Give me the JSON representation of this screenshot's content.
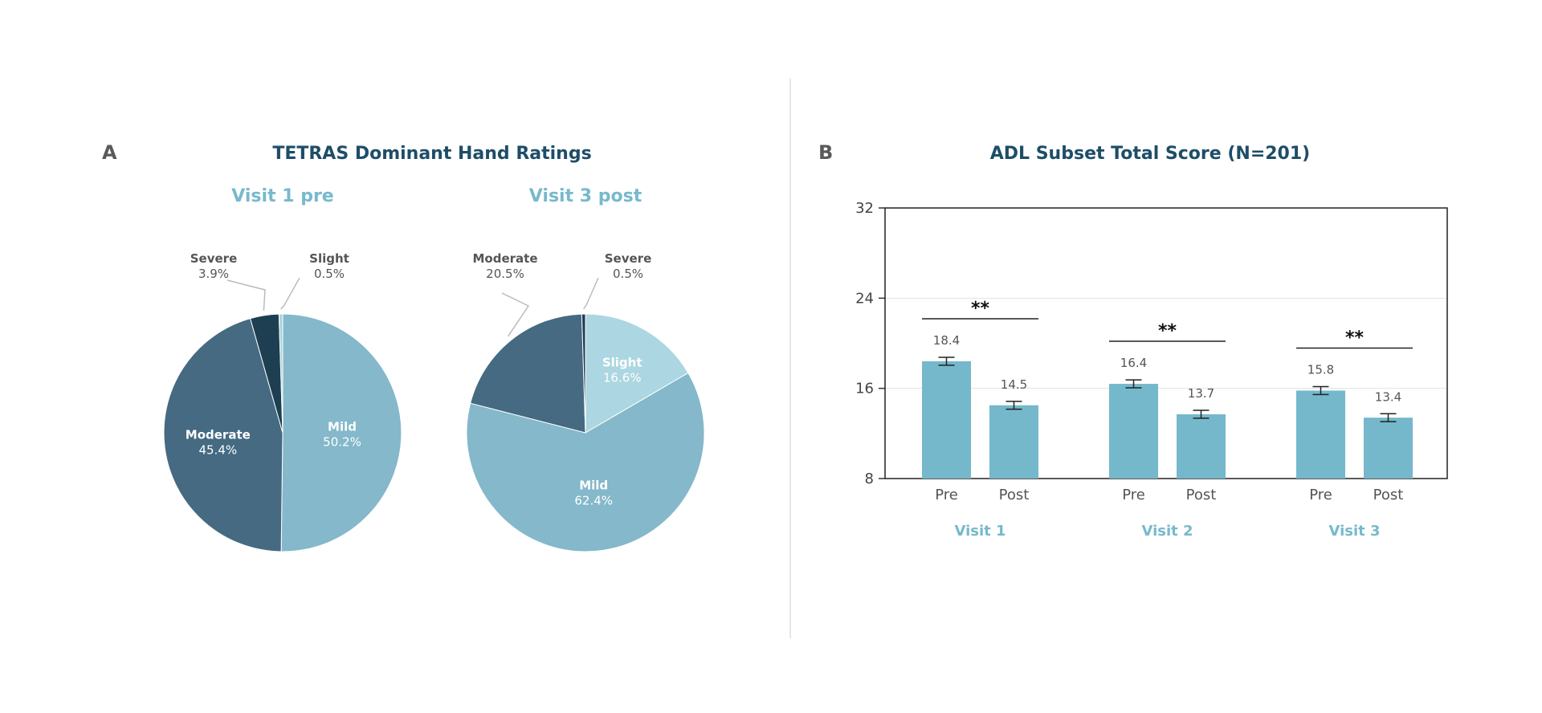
{
  "colors": {
    "background": "#ffffff",
    "title_dark": "#1e4d68",
    "title_light": "#77b9cc",
    "severe": "#1e3f52",
    "moderate": "#456a82",
    "mild": "#84b8ca",
    "slight_v1": "#a9d4e0",
    "slight_v3": "#acd6e1",
    "bar": "#75b8cb",
    "label_gray": "#555555"
  },
  "panel_a": {
    "letter": "A",
    "title": "TETRAS Dominant Hand Ratings"
  },
  "panel_b": {
    "letter": "B",
    "title": "ADL Subset Total Score (N=201)"
  },
  "chart_data": [
    {
      "type": "pie",
      "title": "Visit 1 pre",
      "slices": [
        {
          "name": "Mild",
          "value": 50.2,
          "label": "50.2%",
          "color": "#84b8ca"
        },
        {
          "name": "Moderate",
          "value": 45.4,
          "label": "45.4%",
          "color": "#456a82"
        },
        {
          "name": "Severe",
          "value": 3.9,
          "label": "3.9%",
          "color": "#1e3f52"
        },
        {
          "name": "Slight",
          "value": 0.5,
          "label": "0.5%",
          "color": "#a9d4e0"
        }
      ]
    },
    {
      "type": "pie",
      "title": "Visit 3 post",
      "slices": [
        {
          "name": "Slight",
          "value": 16.6,
          "label": "16.6%",
          "color": "#acd6e1"
        },
        {
          "name": "Mild",
          "value": 62.4,
          "label": "62.4%",
          "color": "#84b8ca"
        },
        {
          "name": "Moderate",
          "value": 20.5,
          "label": "20.5%",
          "color": "#456a82"
        },
        {
          "name": "Severe",
          "value": 0.5,
          "label": "0.5%",
          "color": "#1e3f52"
        }
      ]
    },
    {
      "type": "bar",
      "title": "ADL Subset Total Score (N=201)",
      "groups": [
        "Visit 1",
        "Visit 2",
        "Visit 3"
      ],
      "categories": [
        "Pre",
        "Post"
      ],
      "values": [
        [
          18.4,
          14.5
        ],
        [
          16.4,
          13.7
        ],
        [
          15.8,
          13.4
        ]
      ],
      "labels": [
        [
          "18.4",
          "14.5"
        ],
        [
          "16.4",
          "13.7"
        ],
        [
          "15.8",
          "13.4"
        ]
      ],
      "error": 0.35,
      "significance": [
        "**",
        "**",
        "**"
      ],
      "ylim": [
        8,
        32
      ],
      "yticks": [
        "8",
        "16",
        "24",
        "32"
      ],
      "grid": true,
      "xlabel": "",
      "ylabel": ""
    }
  ]
}
